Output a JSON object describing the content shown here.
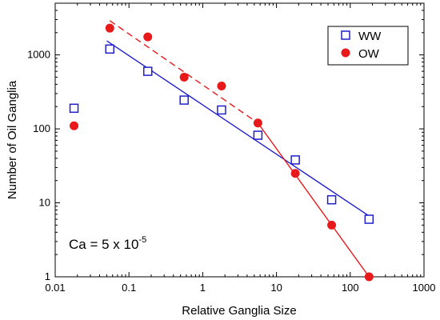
{
  "chart_data": {
    "type": "scatter",
    "title": "",
    "xlabel": "Relative Ganglia Size",
    "ylabel": "Number of Oil Ganglia",
    "xscale": "log",
    "yscale": "log",
    "xlim": [
      0.01,
      1000
    ],
    "ylim": [
      1,
      5000
    ],
    "x_ticks": [
      "0.01",
      "0.1",
      "1",
      "10",
      "100",
      "1000"
    ],
    "y_ticks": [
      "1",
      "10",
      "100",
      "1000"
    ],
    "legend_position": "top-right",
    "series": [
      {
        "name": "WW",
        "marker": "open-square",
        "color": "#1f1fcc",
        "points": [
          {
            "x": 0.018,
            "y": 190
          },
          {
            "x": 0.055,
            "y": 1200
          },
          {
            "x": 0.18,
            "y": 600
          },
          {
            "x": 0.56,
            "y": 245
          },
          {
            "x": 1.8,
            "y": 180
          },
          {
            "x": 5.6,
            "y": 82
          },
          {
            "x": 18,
            "y": 38
          },
          {
            "x": 56,
            "y": 11
          },
          {
            "x": 180,
            "y": 6
          }
        ],
        "fit_lines": [
          {
            "style": "solid",
            "from": {
              "x": 0.05,
              "y": 1550
            },
            "to": {
              "x": 190,
              "y": 6.4
            }
          }
        ]
      },
      {
        "name": "OW",
        "marker": "filled-circle",
        "color": "#e8191a",
        "points": [
          {
            "x": 0.018,
            "y": 110
          },
          {
            "x": 0.055,
            "y": 2300
          },
          {
            "x": 0.18,
            "y": 1750
          },
          {
            "x": 0.56,
            "y": 500
          },
          {
            "x": 1.8,
            "y": 380
          },
          {
            "x": 5.6,
            "y": 120
          },
          {
            "x": 18,
            "y": 25
          },
          {
            "x": 56,
            "y": 5
          },
          {
            "x": 180,
            "y": 1
          }
        ],
        "fit_lines": [
          {
            "style": "dashed",
            "from": {
              "x": 0.055,
              "y": 2900
            },
            "to": {
              "x": 5.6,
              "y": 120
            }
          },
          {
            "style": "solid",
            "from": {
              "x": 5.6,
              "y": 120
            },
            "to": {
              "x": 180,
              "y": 1
            }
          }
        ]
      }
    ],
    "annotation": {
      "text": "Ca = 5 x 10",
      "superscript": "-5"
    }
  }
}
